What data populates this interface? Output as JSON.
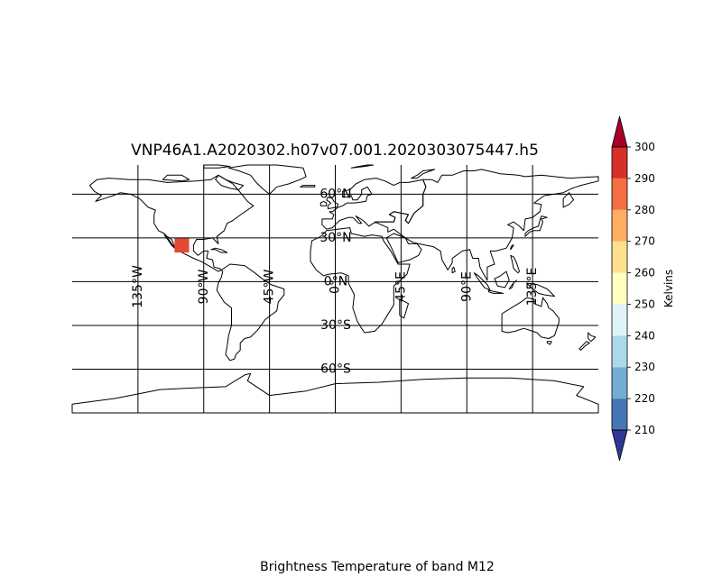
{
  "title": "VNP46A1.A2020302.h07v07.001.2020303075447.h5",
  "caption": "Brightness Temperature of band M12",
  "projection": "plate-carree",
  "extent": {
    "lon": [
      -180,
      180
    ],
    "lat": [
      -90,
      80
    ]
  },
  "gridlines": {
    "lon": [
      -135,
      -90,
      -45,
      0,
      45,
      90,
      135
    ],
    "lat": [
      60,
      30,
      0,
      -30,
      -60
    ],
    "lon_labels": [
      "135°W",
      "90°W",
      "45°W",
      "0°",
      "45°E",
      "90°E",
      "135°E"
    ],
    "lat_labels": [
      "60°N",
      "30°N",
      "0°N",
      "30°S",
      "60°S"
    ]
  },
  "data_tile": {
    "lon": [
      -110,
      -100
    ],
    "lat": [
      20,
      30
    ],
    "value": 290,
    "color": "#e34a33"
  },
  "colorbar": {
    "label": "Kelvins",
    "levels": [
      210,
      220,
      230,
      240,
      250,
      260,
      270,
      280,
      290,
      300
    ],
    "colors": [
      "#4575b4",
      "#74add1",
      "#abd9e9",
      "#e0f3f8",
      "#ffffbf",
      "#fee090",
      "#fdae61",
      "#f46d43",
      "#d73027"
    ],
    "under_color": "#313695",
    "over_color": "#a50026",
    "extend": "both"
  },
  "coastline_color": "#000000"
}
